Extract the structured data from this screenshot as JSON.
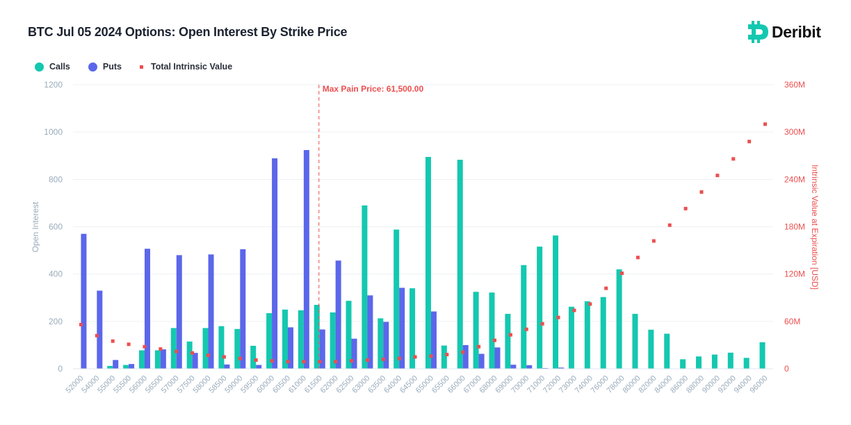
{
  "title": "BTC Jul 05 2024 Options: Open Interest By Strike Price",
  "logo": {
    "text": "Deribit",
    "icon": "deribit-logo-icon"
  },
  "colors": {
    "calls": "#14c8b0",
    "puts": "#5b67ea",
    "intrinsic": "#ec4f4f",
    "axis_text": "#9aabbb",
    "grid": "#eef0f4",
    "right_axis": "#ec4f4f"
  },
  "legend": [
    {
      "label": "Calls",
      "shape": "circle"
    },
    {
      "label": "Puts",
      "shape": "circle"
    },
    {
      "label": "Total Intrinsic Value",
      "shape": "square"
    }
  ],
  "chart_data": {
    "type": "bar",
    "title": "BTC Jul 05 2024 Options: Open Interest By Strike Price",
    "xlabel": "",
    "ylabel": "Open Interest",
    "y2label": "Intrinsic Value at Expiration [USD]",
    "ylim": [
      0,
      1200
    ],
    "y2lim": [
      0,
      360000000
    ],
    "yticks": [
      "0",
      "200",
      "400",
      "600",
      "800",
      "1000",
      "1200"
    ],
    "y2ticks": [
      "0",
      "60M",
      "120M",
      "180M",
      "240M",
      "300M",
      "360M"
    ],
    "grid": true,
    "legend_position": "top-left",
    "categories": [
      "52000",
      "54000",
      "55000",
      "55500",
      "56000",
      "56500",
      "57000",
      "57500",
      "58000",
      "58500",
      "59000",
      "59500",
      "60000",
      "60500",
      "61000",
      "61500",
      "62000",
      "62500",
      "63000",
      "63500",
      "64000",
      "64500",
      "65000",
      "65500",
      "66000",
      "67000",
      "68000",
      "69000",
      "70000",
      "71000",
      "72000",
      "73000",
      "74000",
      "76000",
      "78000",
      "80000",
      "82000",
      "84000",
      "86000",
      "88000",
      "90000",
      "92000",
      "94000",
      "96000"
    ],
    "series": [
      {
        "name": "Calls",
        "type": "bar",
        "axis": "left",
        "values": [
          0,
          0,
          12,
          16,
          78,
          78,
          172,
          115,
          172,
          180,
          168,
          97,
          235,
          250,
          247,
          270,
          238,
          287,
          690,
          213,
          588,
          340,
          895,
          98,
          883,
          325,
          322,
          232,
          438,
          516,
          563,
          262,
          285,
          303,
          420,
          232,
          165,
          148,
          40,
          52,
          60,
          68,
          46,
          112
        ]
      },
      {
        "name": "Puts",
        "type": "bar",
        "axis": "right-none",
        "values": [
          570,
          330,
          37,
          20,
          507,
          82,
          480,
          67,
          483,
          18,
          505,
          16,
          889,
          175,
          924,
          166,
          457,
          127,
          310,
          198,
          342,
          0,
          242,
          0,
          100,
          63,
          90,
          17,
          15,
          3,
          5,
          0,
          0,
          0,
          0,
          0,
          0,
          0,
          0,
          0,
          0,
          0,
          0,
          0
        ]
      },
      {
        "name": "Total Intrinsic Value",
        "type": "scatter",
        "axis": "right",
        "values": [
          56000000,
          42000000,
          35000000,
          31000000,
          28000000,
          25000000,
          22000000,
          20000000,
          17000000,
          15000000,
          13000000,
          11000000,
          10000000,
          9000000,
          9000000,
          9000000,
          9000000,
          10000000,
          11000000,
          12000000,
          13000000,
          15000000,
          16000000,
          18000000,
          21000000,
          28000000,
          36000000,
          43000000,
          50000000,
          57000000,
          65000000,
          74000000,
          82000000,
          102000000,
          121000000,
          141000000,
          162000000,
          182000000,
          203000000,
          224000000,
          245000000,
          266000000,
          288000000,
          310000000
        ]
      }
    ],
    "annotations": [
      {
        "type": "vline",
        "x": "61500",
        "label": "Max Pain Price: 61,500.00"
      }
    ]
  }
}
